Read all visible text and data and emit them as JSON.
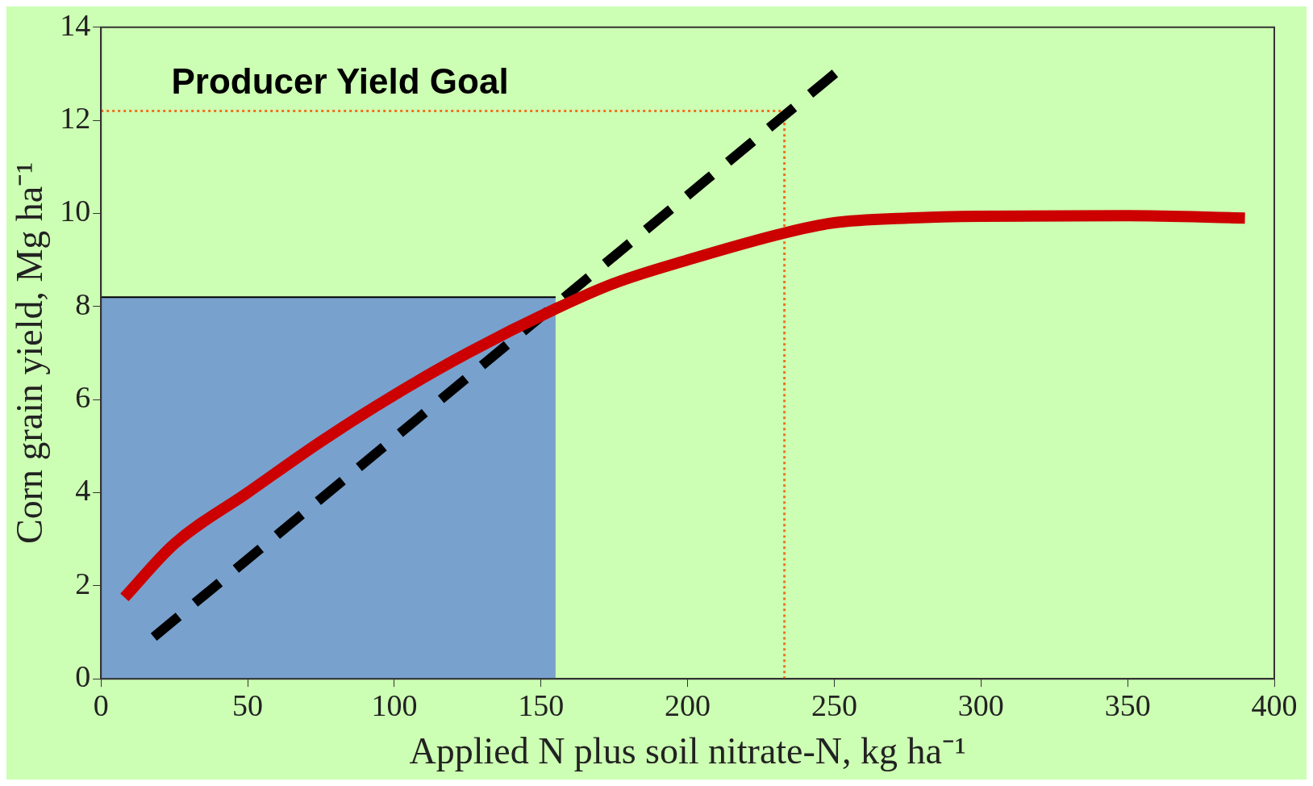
{
  "chart_data": {
    "type": "line",
    "xlabel": "Applied N plus soil nitrate-N, kg ha⁻¹",
    "ylabel": "Corn grain yield, Mg ha⁻¹",
    "xlim": [
      0,
      400
    ],
    "ylim": [
      0,
      14
    ],
    "xticks": [
      0,
      50,
      100,
      150,
      200,
      250,
      300,
      350,
      400
    ],
    "yticks": [
      0,
      2,
      4,
      6,
      8,
      10,
      12,
      14
    ],
    "grid": false,
    "legend": false,
    "annotations": [
      "Producer Yield Goal"
    ],
    "series": [
      {
        "type": "area",
        "color": "#5b7fd6",
        "x": [
          0,
          155
        ],
        "values": [
          8.2,
          8.2
        ]
      },
      {
        "color": "#cc0000",
        "line_style": "solid",
        "x": [
          8,
          25,
          50,
          75,
          100,
          125,
          155,
          175,
          200,
          233,
          250,
          275,
          300,
          350,
          390
        ],
        "values": [
          1.75,
          2.9,
          4.0,
          5.1,
          6.1,
          7.0,
          7.95,
          8.5,
          9.0,
          9.58,
          9.8,
          9.9,
          9.94,
          9.95,
          9.9
        ]
      },
      {
        "color": "#000000",
        "line_style": "dashed",
        "x": [
          18,
          252
        ],
        "values": [
          0.9,
          13.1
        ]
      },
      {
        "type": "line",
        "color": "#f07020",
        "line_style": "dotted",
        "x": [
          0,
          233
        ],
        "values": [
          12.2,
          12.2
        ]
      },
      {
        "type": "line",
        "color": "#f07020",
        "line_style": "dotted",
        "x": [
          233,
          233
        ],
        "values": [
          0,
          12.2
        ]
      }
    ]
  }
}
